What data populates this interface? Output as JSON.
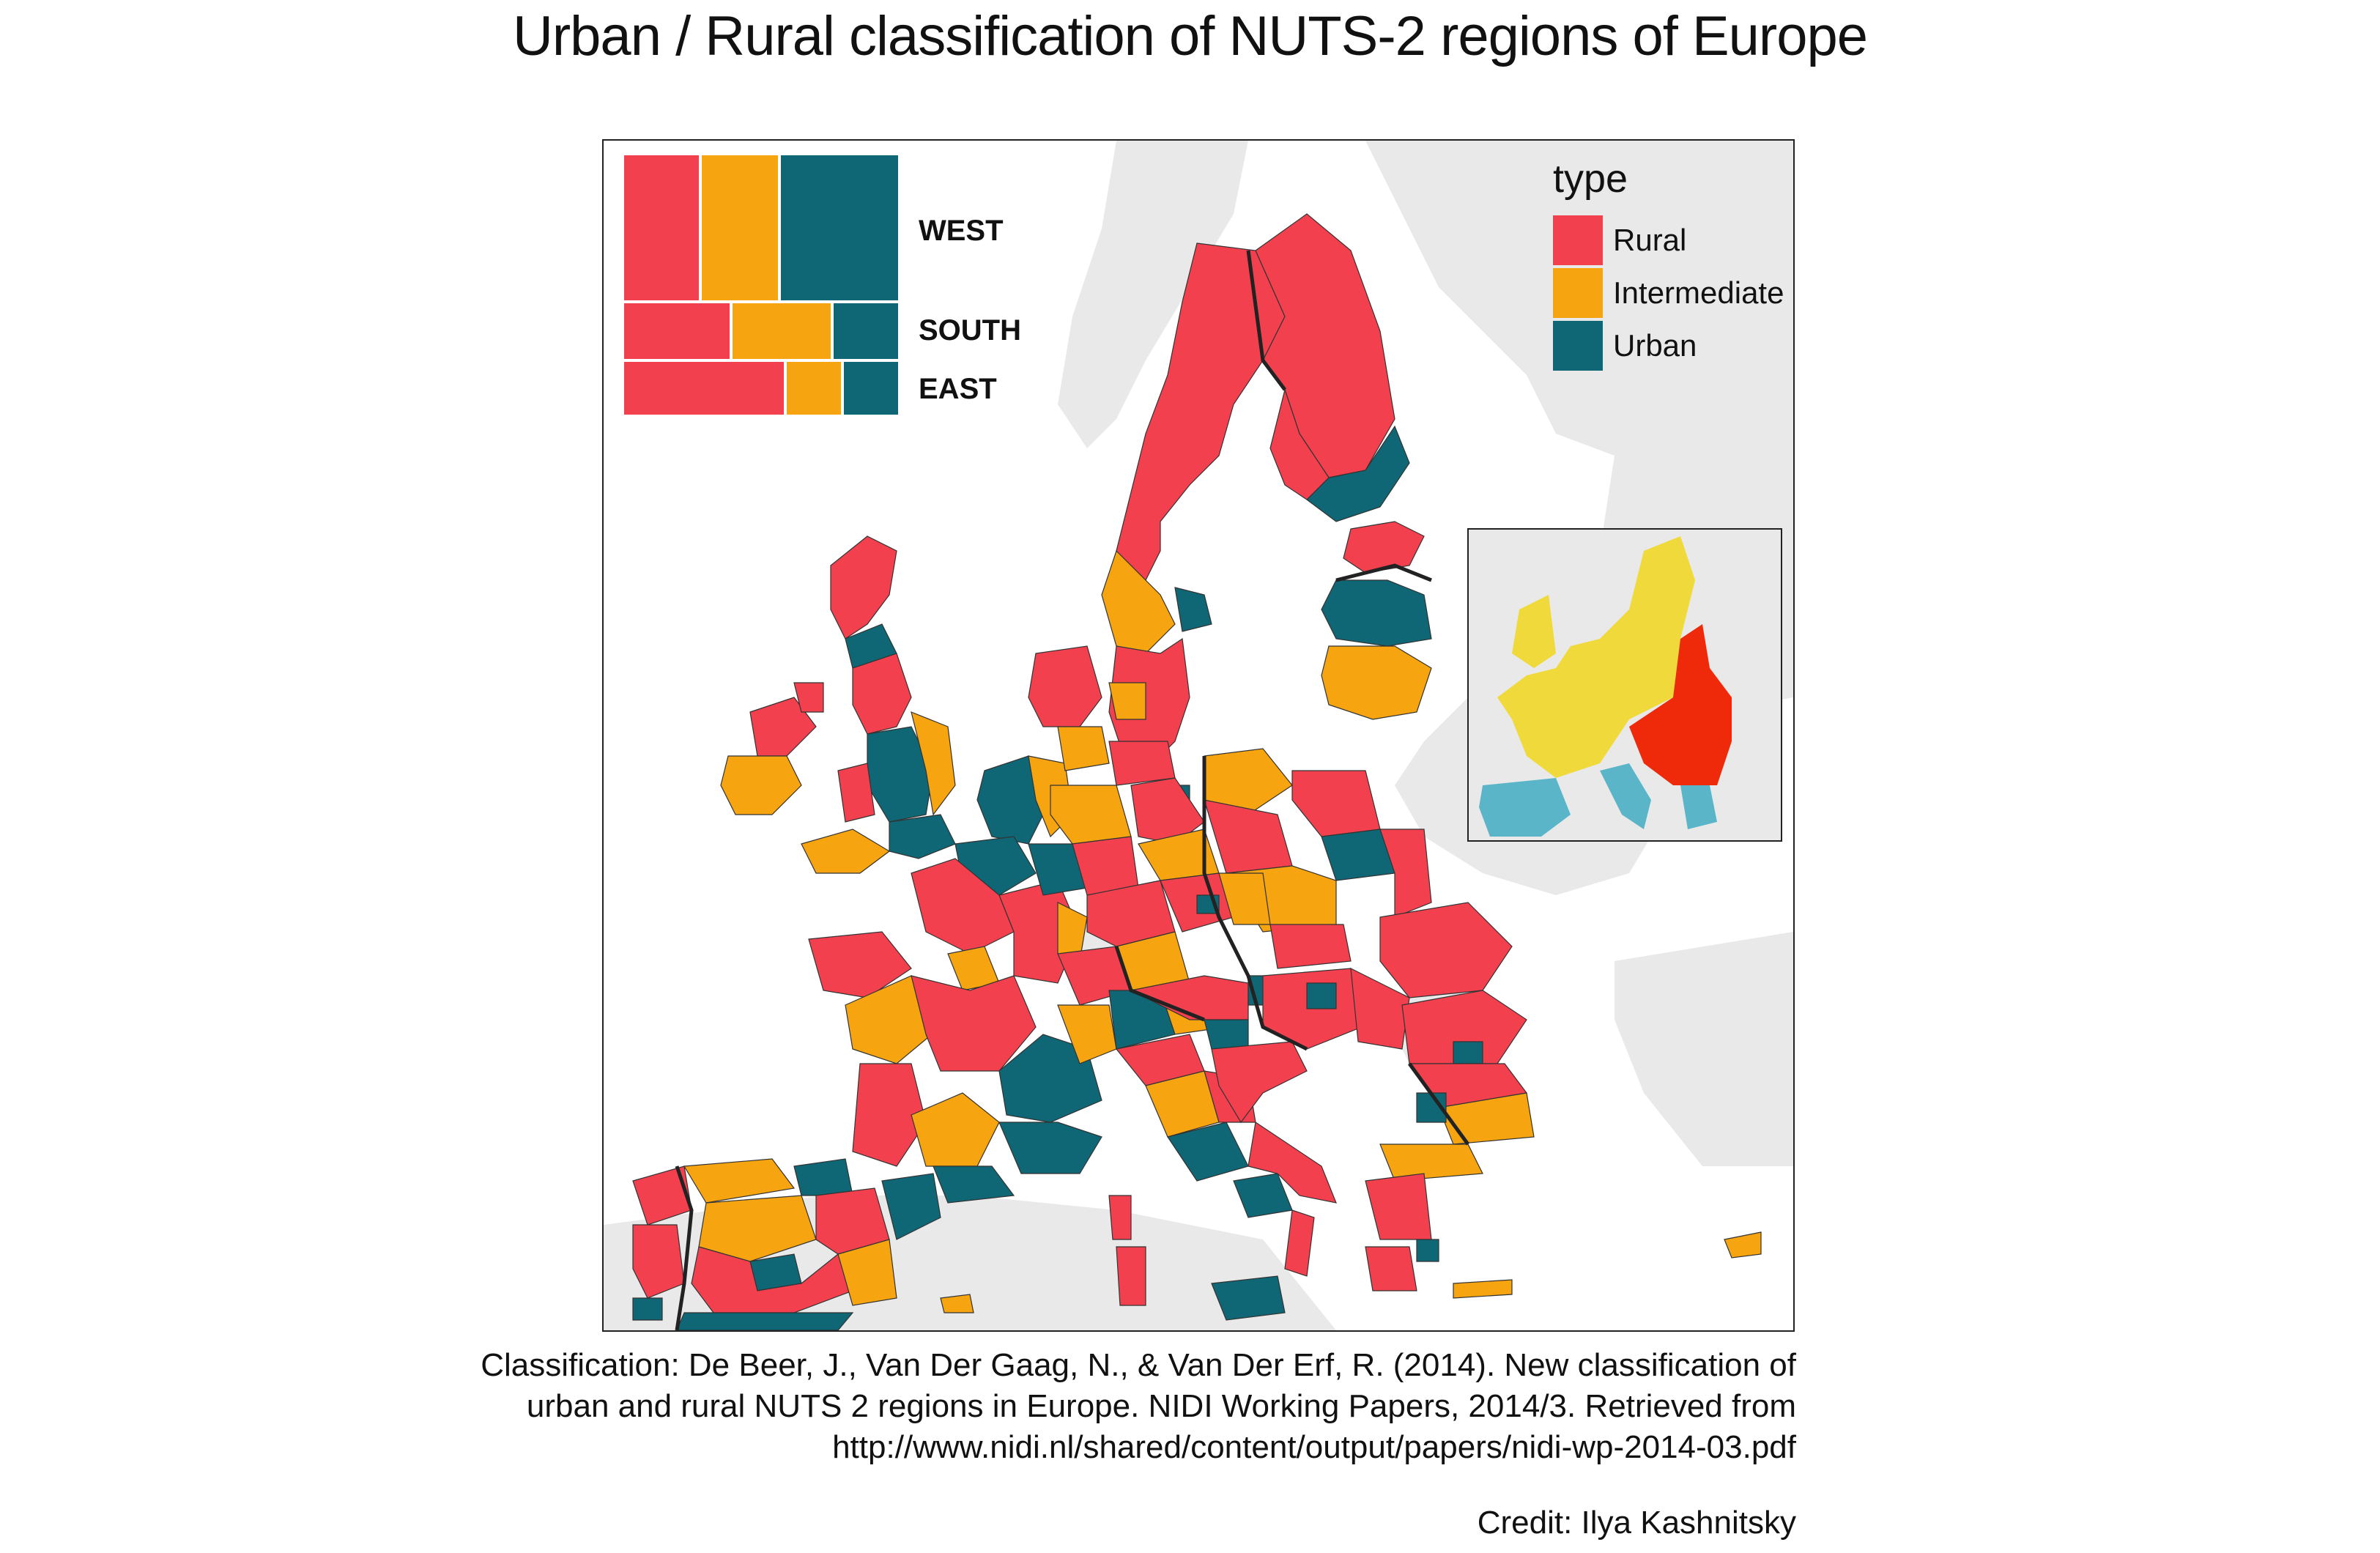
{
  "title": "Urban / Rural classification of NUTS-2 regions of Europe",
  "colors": {
    "rural": "#F2404F",
    "intermediate": "#F6A410",
    "urban": "#0F6674",
    "land_background": "#E9E9E9",
    "sea": "#FFFFFF",
    "inset_west": "#F0D93A",
    "inset_east": "#EE2A0A",
    "inset_south": "#5BB5C9"
  },
  "treemap": {
    "rows": [
      {
        "label": "WEST"
      },
      {
        "label": "SOUTH"
      },
      {
        "label": "EAST"
      }
    ]
  },
  "legend": {
    "title": "type",
    "items": [
      {
        "label": "Rural",
        "key": "rural"
      },
      {
        "label": "Intermediate",
        "key": "intermediate"
      },
      {
        "label": "Urban",
        "key": "urban"
      }
    ]
  },
  "caption": {
    "line1": "Classification: De Beer, J., Van Der Gaag, N., & Van Der Erf, R. (2014). New classification of",
    "line2": "urban and rural NUTS 2 regions in Europe. NIDI Working Papers, 2014/3. Retrieved from",
    "line3": "http://www.nidi.nl/shared/content/output/papers/nidi-wp-2014-03.pdf"
  },
  "credit": "Credit: Ilya Kashnitsky"
}
